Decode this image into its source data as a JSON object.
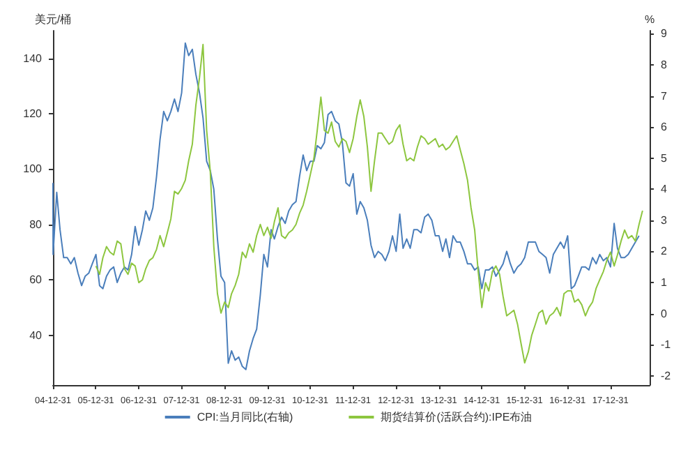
{
  "chart_data": {
    "type": "line",
    "ylabel": "美元/桶",
    "y2label": "%",
    "xlim": [
      "2004-12-31",
      "2018-11-30"
    ],
    "xticks": [
      {
        "value": "2004-12-31",
        "label": "04-12-31"
      },
      {
        "value": "2005-12-31",
        "label": "05-12-31"
      },
      {
        "value": "2006-12-31",
        "label": "06-12-31"
      },
      {
        "value": "2007-12-31",
        "label": "07-12-31"
      },
      {
        "value": "2008-12-31",
        "label": "08-12-31"
      },
      {
        "value": "2009-12-31",
        "label": "09-12-31"
      },
      {
        "value": "2010-12-31",
        "label": "10-12-31"
      },
      {
        "value": "2011-12-31",
        "label": "11-12-31"
      },
      {
        "value": "2012-12-31",
        "label": "12-12-31"
      },
      {
        "value": "2013-12-31",
        "label": "13-12-31"
      },
      {
        "value": "2014-12-31",
        "label": "14-12-31"
      },
      {
        "value": "2015-12-31",
        "label": "15-12-31"
      },
      {
        "value": "2016-12-31",
        "label": "16-12-31"
      },
      {
        "value": "2017-12-31",
        "label": "17-12-31"
      }
    ],
    "ylim": [
      22,
      150
    ],
    "yticks": [
      40,
      60,
      80,
      100,
      120,
      140
    ],
    "y2lim": [
      -2.3,
      9.1
    ],
    "y2ticks": [
      -2,
      -1,
      0,
      1,
      2,
      3,
      4,
      5,
      6,
      7,
      8,
      9
    ],
    "grid": false,
    "legend": "bottom",
    "marker": "none",
    "line_style": "solid",
    "series": [
      {
        "name": "CPI:当月同比(右轴)",
        "color": "#4a7ebb",
        "axis": "y2",
        "x": [
          "2004-12-31",
          "2005-01",
          "2005-02",
          "2005-03",
          "2005-04",
          "2005-05",
          "2005-06",
          "2005-07",
          "2005-08",
          "2005-09",
          "2005-10",
          "2005-11",
          "2005-12",
          "2006-01",
          "2006-02",
          "2006-03",
          "2006-04",
          "2006-05",
          "2006-06",
          "2006-07",
          "2006-08",
          "2006-09",
          "2006-10",
          "2006-11",
          "2006-12",
          "2007-01",
          "2007-02",
          "2007-03",
          "2007-04",
          "2007-05",
          "2007-06",
          "2007-07",
          "2007-08",
          "2007-09",
          "2007-10",
          "2007-11",
          "2007-12",
          "2008-01",
          "2008-02",
          "2008-03",
          "2008-04",
          "2008-05",
          "2008-06",
          "2008-07",
          "2008-08",
          "2008-09",
          "2008-10",
          "2008-11",
          "2008-12",
          "2009-01",
          "2009-02",
          "2009-03",
          "2009-04",
          "2009-05",
          "2009-06",
          "2009-07",
          "2009-08",
          "2009-09",
          "2009-10",
          "2009-11",
          "2009-12",
          "2010-01",
          "2010-02",
          "2010-03",
          "2010-04",
          "2010-05",
          "2010-06",
          "2010-07",
          "2010-08",
          "2010-09",
          "2010-10",
          "2010-11",
          "2010-12",
          "2011-01",
          "2011-02",
          "2011-03",
          "2011-04",
          "2011-05",
          "2011-06",
          "2011-07",
          "2011-08",
          "2011-09",
          "2011-10",
          "2011-11",
          "2011-12",
          "2012-01",
          "2012-02",
          "2012-03",
          "2012-04",
          "2012-05",
          "2012-06",
          "2012-07",
          "2012-08",
          "2012-09",
          "2012-10",
          "2012-11",
          "2012-12",
          "2013-01",
          "2013-02",
          "2013-03",
          "2013-04",
          "2013-05",
          "2013-06",
          "2013-07",
          "2013-08",
          "2013-09",
          "2013-10",
          "2013-11",
          "2013-12",
          "2014-01",
          "2014-02",
          "2014-03",
          "2014-04",
          "2014-05",
          "2014-06",
          "2014-07",
          "2014-08",
          "2014-09",
          "2014-10",
          "2014-11",
          "2014-12",
          "2015-01",
          "2015-02",
          "2015-03",
          "2015-04",
          "2015-05",
          "2015-06",
          "2015-07",
          "2015-08",
          "2015-09",
          "2015-10",
          "2015-11",
          "2015-12",
          "2016-01",
          "2016-02",
          "2016-03",
          "2016-04",
          "2016-05",
          "2016-06",
          "2016-07",
          "2016-08",
          "2016-09",
          "2016-10",
          "2016-11",
          "2016-12",
          "2017-01",
          "2017-02",
          "2017-03",
          "2017-04",
          "2017-05",
          "2017-06",
          "2017-07",
          "2017-08",
          "2017-09",
          "2017-10",
          "2017-11",
          "2017-12",
          "2018-01",
          "2018-02",
          "2018-03",
          "2018-04",
          "2018-05",
          "2018-06",
          "2018-07",
          "2018-08",
          "2018-09"
        ],
        "values": [
          4.2,
          1.9,
          3.9,
          2.7,
          1.8,
          1.8,
          1.6,
          1.8,
          1.3,
          0.9,
          1.2,
          1.3,
          1.6,
          1.9,
          0.9,
          0.8,
          1.2,
          1.4,
          1.5,
          1.0,
          1.3,
          1.5,
          1.4,
          1.9,
          2.8,
          2.2,
          2.7,
          3.3,
          3.0,
          3.4,
          4.4,
          5.6,
          6.5,
          6.2,
          6.5,
          6.9,
          6.5,
          7.1,
          8.7,
          8.3,
          8.5,
          7.7,
          7.1,
          6.3,
          4.9,
          4.6,
          4.0,
          2.4,
          1.2,
          1.0,
          -1.6,
          -1.2,
          -1.5,
          -1.4,
          -1.7,
          -1.8,
          -1.2,
          -0.8,
          -0.5,
          0.6,
          1.9,
          1.5,
          2.7,
          2.4,
          2.8,
          3.1,
          2.9,
          3.3,
          3.5,
          3.6,
          4.4,
          5.1,
          4.6,
          4.9,
          4.9,
          5.4,
          5.3,
          5.5,
          6.4,
          6.5,
          6.2,
          6.1,
          5.5,
          4.2,
          4.1,
          4.5,
          3.2,
          3.6,
          3.4,
          3.0,
          2.2,
          1.8,
          2.0,
          1.9,
          1.7,
          2.0,
          2.5,
          2.0,
          3.2,
          2.1,
          2.4,
          2.1,
          2.7,
          2.7,
          2.6,
          3.1,
          3.2,
          3.0,
          2.5,
          2.5,
          2.0,
          2.4,
          1.8,
          2.5,
          2.3,
          2.3,
          2.0,
          1.6,
          1.6,
          1.4,
          1.5,
          0.8,
          1.4,
          1.4,
          1.5,
          1.2,
          1.4,
          1.6,
          2.0,
          1.6,
          1.3,
          1.5,
          1.6,
          1.8,
          2.3,
          2.3,
          2.3,
          2.0,
          1.9,
          1.8,
          1.3,
          1.9,
          2.1,
          2.3,
          2.1,
          2.5,
          0.8,
          0.9,
          1.2,
          1.5,
          1.5,
          1.4,
          1.8,
          1.6,
          1.9,
          1.7,
          1.8,
          1.5,
          2.9,
          2.1,
          1.8,
          1.8,
          1.9,
          2.1,
          2.3,
          2.5
        ]
      },
      {
        "name": "期货结算价(活跃合约):IPE布油",
        "color": "#8dc63f",
        "x": [
          "2006-01",
          "2006-02",
          "2006-03",
          "2006-04",
          "2006-05",
          "2006-06",
          "2006-07",
          "2006-08",
          "2006-09",
          "2006-10",
          "2006-11",
          "2006-12",
          "2007-01",
          "2007-02",
          "2007-03",
          "2007-04",
          "2007-05",
          "2007-06",
          "2007-07",
          "2007-08",
          "2007-09",
          "2007-10",
          "2007-11",
          "2007-12",
          "2008-01",
          "2008-02",
          "2008-03",
          "2008-04",
          "2008-05",
          "2008-06",
          "2008-07",
          "2008-08",
          "2008-09",
          "2008-10",
          "2008-11",
          "2008-12",
          "2009-01",
          "2009-02",
          "2009-03",
          "2009-04",
          "2009-05",
          "2009-06",
          "2009-07",
          "2009-08",
          "2009-09",
          "2009-10",
          "2009-11",
          "2009-12",
          "2010-01",
          "2010-02",
          "2010-03",
          "2010-04",
          "2010-05",
          "2010-06",
          "2010-07",
          "2010-08",
          "2010-09",
          "2010-10",
          "2010-11",
          "2010-12",
          "2011-01",
          "2011-02",
          "2011-03",
          "2011-04",
          "2011-05",
          "2011-06",
          "2011-07",
          "2011-08",
          "2011-09",
          "2011-10",
          "2011-11",
          "2011-12",
          "2012-01",
          "2012-02",
          "2012-03",
          "2012-04",
          "2012-05",
          "2012-06",
          "2012-07",
          "2012-08",
          "2012-09",
          "2012-10",
          "2012-11",
          "2012-12",
          "2013-01",
          "2013-02",
          "2013-03",
          "2013-04",
          "2013-05",
          "2013-06",
          "2013-07",
          "2013-08",
          "2013-09",
          "2013-10",
          "2013-11",
          "2013-12",
          "2014-01",
          "2014-02",
          "2014-03",
          "2014-04",
          "2014-05",
          "2014-06",
          "2014-07",
          "2014-08",
          "2014-09",
          "2014-10",
          "2014-11",
          "2014-12",
          "2015-01",
          "2015-02",
          "2015-03",
          "2015-04",
          "2015-05",
          "2015-06",
          "2015-07",
          "2015-08",
          "2015-09",
          "2015-10",
          "2015-11",
          "2015-12",
          "2016-01",
          "2016-02",
          "2016-03",
          "2016-04",
          "2016-05",
          "2016-06",
          "2016-07",
          "2016-08",
          "2016-09",
          "2016-10",
          "2016-11",
          "2016-12",
          "2017-01",
          "2017-02",
          "2017-03",
          "2017-04",
          "2017-05",
          "2017-06",
          "2017-07",
          "2017-08",
          "2017-09",
          "2017-10",
          "2017-11",
          "2017-12",
          "2018-01",
          "2018-02",
          "2018-03",
          "2018-04",
          "2018-05",
          "2018-06",
          "2018-07",
          "2018-08",
          "2018-09",
          "2018-10"
        ],
        "values": [
          65,
          62,
          68,
          72,
          70,
          69,
          74,
          73,
          64,
          62,
          66,
          65,
          59,
          60,
          64,
          67,
          68,
          71,
          76,
          72,
          77,
          82,
          92,
          91,
          93,
          96,
          103,
          109,
          123,
          133,
          145,
          114,
          99,
          72,
          55,
          48,
          52,
          50,
          55,
          58,
          62,
          70,
          68,
          73,
          70,
          76,
          80,
          76,
          79,
          75,
          81,
          86,
          76,
          75,
          77,
          78,
          80,
          84,
          87,
          92,
          98,
          104,
          114,
          126,
          114,
          113,
          117,
          110,
          108,
          111,
          110,
          106,
          111,
          119,
          125,
          119,
          108,
          92,
          103,
          113,
          113,
          111,
          109,
          110,
          114,
          116,
          109,
          103,
          104,
          103,
          108,
          112,
          111,
          109,
          110,
          111,
          108,
          109,
          107,
          108,
          110,
          112,
          107,
          102,
          96,
          86,
          78,
          63,
          50,
          59,
          56,
          63,
          65,
          62,
          54,
          47,
          48,
          49,
          44,
          37,
          30,
          34,
          40,
          44,
          48,
          49,
          44,
          47,
          48,
          50,
          47,
          55,
          56,
          56,
          52,
          53,
          51,
          47,
          50,
          52,
          57,
          60,
          63,
          67,
          70,
          65,
          69,
          74,
          78,
          75,
          76,
          74,
          80,
          85
        ]
      }
    ]
  }
}
